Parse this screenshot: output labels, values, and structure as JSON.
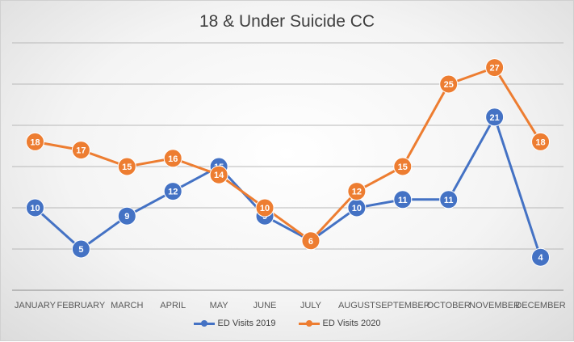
{
  "chart_data": {
    "type": "line",
    "title": "18 & Under Suicide CC",
    "categories": [
      "JANUARY",
      "FEBRUARY",
      "MARCH",
      "APRIL",
      "MAY",
      "JUNE",
      "JULY",
      "AUGUST",
      "SEPTEMBER",
      "OCTOBER",
      "NOVEMBER",
      "DECEMBER"
    ],
    "series": [
      {
        "name": "ED Visits 2019",
        "color": "#4472C4",
        "values": [
          10,
          5,
          9,
          12,
          15,
          9,
          6,
          10,
          11,
          11,
          21,
          4
        ]
      },
      {
        "name": "ED Visits 2020",
        "color": "#ED7D31",
        "values": [
          18,
          17,
          15,
          16,
          14,
          10,
          6,
          12,
          15,
          25,
          27,
          18
        ]
      }
    ],
    "ylim": [
      0,
      30
    ],
    "grid": true,
    "legend_position": "bottom",
    "data_labels": true
  }
}
